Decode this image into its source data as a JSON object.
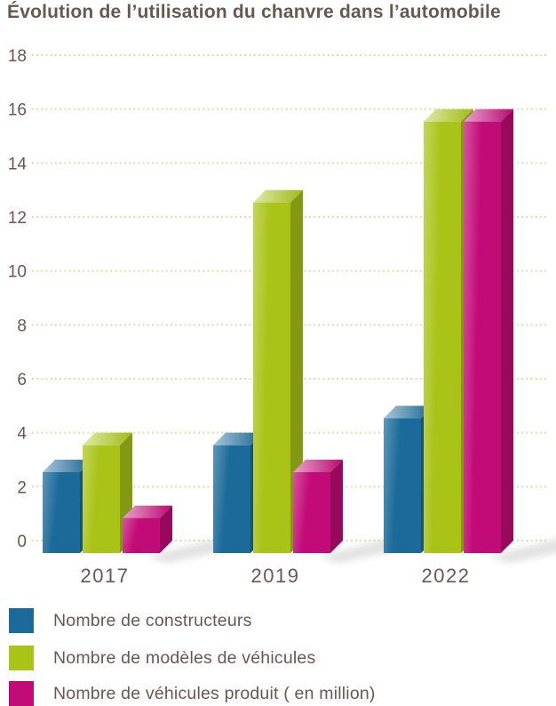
{
  "page": {
    "title": "Évolution de l’utilisation du chanvre dans l’automobile"
  },
  "colors": {
    "text": "#6a5750",
    "grid_dots": "#d8de9b",
    "shadow": "#c4c4c4",
    "background": "#ffffff"
  },
  "chart_data": {
    "type": "bar",
    "style": "3d-column",
    "title": "Évolution de l’utilisation du chanvre dans l’automobile",
    "categories": [
      "2017",
      "2019",
      "2022"
    ],
    "series": [
      {
        "name": "Nombre de constructeurs",
        "color": "#1b6a99",
        "values": [
          3,
          4,
          5
        ]
      },
      {
        "name": "Nombre de modèles de véhicules",
        "color": "#a9c417",
        "values": [
          4,
          13,
          16
        ]
      },
      {
        "name": "Nombre de véhicules produit ( en million)",
        "color": "#c30b77",
        "values": [
          1.3,
          3,
          16
        ]
      }
    ],
    "xlabel": "",
    "ylabel": "",
    "ylim": [
      0,
      18
    ],
    "ytick_step": 2,
    "yticks": [
      0,
      2,
      4,
      6,
      8,
      10,
      12,
      14,
      16,
      18
    ],
    "grid": "horizontal-dotted",
    "legend_position": "bottom-left"
  }
}
